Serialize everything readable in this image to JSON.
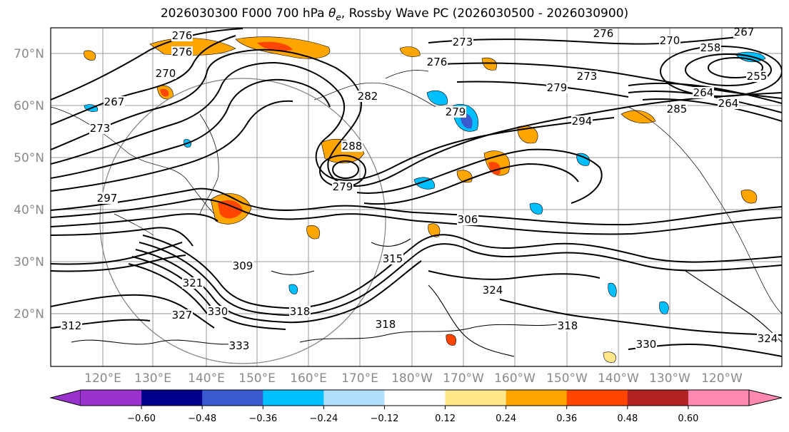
{
  "title": {
    "pre": "2026030300 F000 700 hPa ",
    "symbol": "θ",
    "subscript": "e",
    "post": ", Rossby Wave PC (2026030500 - 2026030900)"
  },
  "lat_labels": [
    "70°N",
    "60°N",
    "50°N",
    "40°N",
    "30°N",
    "20°N"
  ],
  "lon_labels": [
    "120°E",
    "130°E",
    "140°E",
    "150°E",
    "160°E",
    "170°E",
    "180°W",
    "170°W",
    "160°W",
    "150°W",
    "140°W",
    "130°W",
    "120°W"
  ],
  "contour_labels": [
    "276",
    "273",
    "276",
    "267",
    "270",
    "264",
    "258",
    "255",
    "270",
    "267",
    "273",
    "276",
    "273",
    "279",
    "276",
    "282",
    "279",
    "264",
    "285",
    "288",
    "294",
    "279",
    "297",
    "306",
    "309",
    "315",
    "318",
    "324",
    "321",
    "318",
    "327",
    "330",
    "333",
    "318",
    "330",
    "324",
    "312"
  ],
  "colorbar": {
    "ticks": [
      "−0.60",
      "−0.48",
      "−0.36",
      "−0.24",
      "−0.12",
      "0.12",
      "0.24",
      "0.36",
      "0.48",
      "0.60"
    ],
    "colors": [
      "#9932cc",
      "#00008b",
      "#3a5bd0",
      "#00bfff",
      "#b0e0fa",
      "#ffffff",
      "#ffe88a",
      "#ffa500",
      "#ff4500",
      "#b22222",
      "#ff88b0"
    ]
  }
}
